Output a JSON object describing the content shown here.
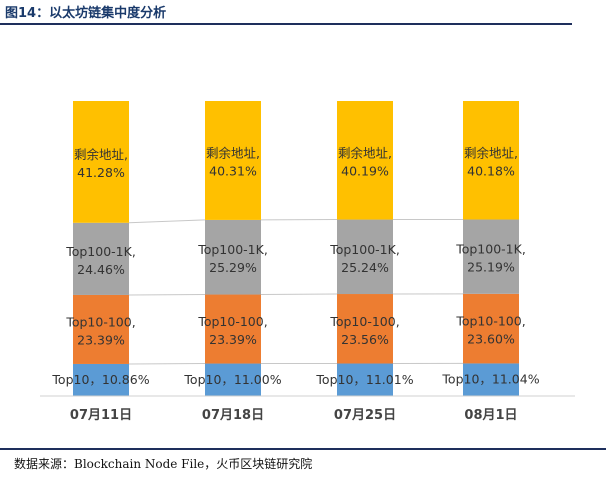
{
  "figure_title": "图14：以太坊链集中度分析",
  "source_text": "数据来源：Blockchain Node File，火币区块链研究院",
  "colors": {
    "Top10": "#5b9bd5",
    "Top10-100": "#ed7d31",
    "Top100-1K": "#a5a5a5",
    "剩余地址": "#ffc000",
    "rule": "#1e2f5c"
  },
  "chart_data": {
    "type": "bar",
    "stacked": true,
    "percent_stacked": true,
    "categories": [
      "07月11日",
      "07月18日",
      "07月25日",
      "08月1日"
    ],
    "series": [
      {
        "name": "Top10",
        "values": [
          10.86,
          11.0,
          11.01,
          11.04
        ],
        "labels": [
          "Top10，10.86%",
          "Top10，11.00%",
          "Top10，11.01%",
          "Top10，11.04%"
        ]
      },
      {
        "name": "Top10-100",
        "values": [
          23.39,
          23.39,
          23.56,
          23.6
        ],
        "labels": [
          "Top10-100，23.39%",
          "Top10-100，23.39%",
          "Top10-100，23.56%",
          "Top10-100，23.60%"
        ]
      },
      {
        "name": "Top100-1K",
        "values": [
          24.46,
          25.29,
          25.24,
          25.19
        ],
        "labels": [
          "Top100-1K，24.46%",
          "Top100-1K，25.29%",
          "Top100-1K，25.24%",
          "Top100-1K，25.19%"
        ]
      },
      {
        "name": "剩余地址",
        "values": [
          41.28,
          40.31,
          40.19,
          40.18
        ],
        "labels": [
          "剩余地址，41.28%",
          "剩余地址，40.31%",
          "剩余地址，40.19%",
          "剩余地址，40.18%"
        ]
      }
    ],
    "ylim": [
      0,
      100
    ],
    "grid": false,
    "legend": "none"
  }
}
